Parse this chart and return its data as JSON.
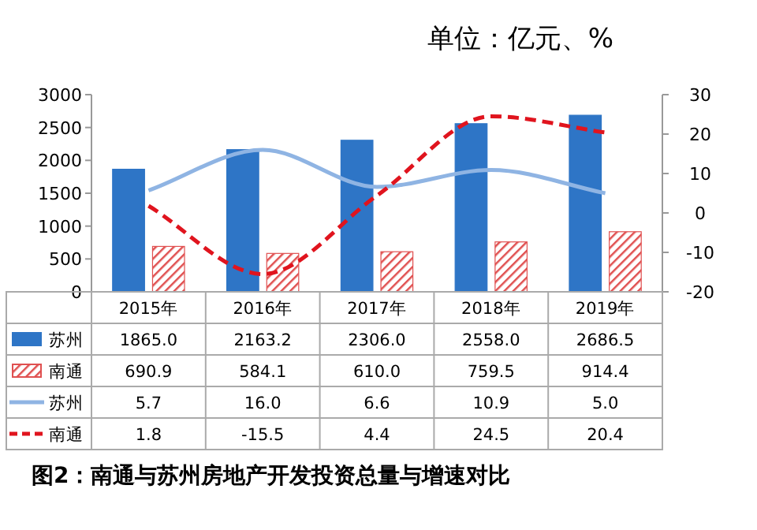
{
  "chart_data": {
    "type": "bar",
    "title": "图2：南通与苏州房地产开发投资总量与增速对比",
    "subtitle": "单位：亿元、%",
    "categories": [
      "2015年",
      "2016年",
      "2017年",
      "2018年",
      "2019年"
    ],
    "series": [
      {
        "name": "苏州",
        "color": "#2e75c6",
        "values": [
          1865.0,
          2163.2,
          2306.0,
          2558.0,
          2686.5
        ],
        "value_labels": [
          "1865.0",
          "2163.2",
          "2306.0",
          "2558.0",
          "2686.5"
        ]
      },
      {
        "name": "南通",
        "color": "#e05050",
        "values": [
          690.9,
          584.1,
          610.0,
          759.5,
          914.4
        ],
        "value_labels": [
          "690.9",
          "584.1",
          "610.0",
          "759.5",
          "914.4"
        ]
      },
      {
        "name": "苏州",
        "type": "line",
        "axis": "y2",
        "color": "#8fb4e3",
        "line_style": "solid",
        "values": [
          5.7,
          16.0,
          6.6,
          10.9,
          5.0
        ],
        "value_labels": [
          "5.7",
          "16.0",
          "6.6",
          "10.9",
          "5.0"
        ]
      },
      {
        "name": "南通",
        "type": "line",
        "axis": "y2",
        "color": "#e0141e",
        "line_style": "dashed",
        "values": [
          1.8,
          -15.5,
          4.4,
          24.5,
          20.4
        ],
        "value_labels": [
          "1.8",
          "-15.5",
          "4.4",
          "24.5",
          "20.4"
        ]
      }
    ],
    "ylim": [
      0,
      3000
    ],
    "yticks": [
      0,
      500,
      1000,
      1500,
      2000,
      2500,
      3000
    ],
    "y2lim": [
      -20,
      30
    ],
    "y2ticks": [
      -20,
      -10,
      0,
      10,
      20,
      30
    ],
    "marker": "none",
    "grid": false,
    "legend": "bottom"
  }
}
